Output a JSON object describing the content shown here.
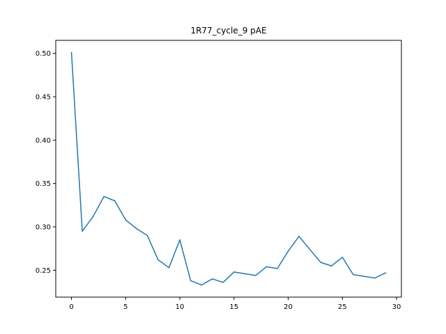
{
  "chart_data": {
    "type": "line",
    "title": "1R77_cycle_9 pAE",
    "xlabel": "",
    "ylabel": "",
    "xlim": [
      -1.45,
      30.45
    ],
    "ylim": [
      0.219,
      0.515
    ],
    "grid": false,
    "x_ticks": [
      0,
      5,
      10,
      15,
      20,
      25,
      30
    ],
    "y_ticks": [
      0.25,
      0.3,
      0.35,
      0.4,
      0.45,
      0.5
    ],
    "x_tick_labels": [
      "0",
      "5",
      "10",
      "15",
      "20",
      "25",
      "30"
    ],
    "y_tick_labels": [
      "0.25",
      "0.30",
      "0.35",
      "0.40",
      "0.45",
      "0.50"
    ],
    "line_color": "#1f77b4",
    "series": [
      {
        "x": [
          0,
          1,
          2,
          3,
          4,
          5,
          6,
          7,
          8,
          9,
          10,
          11,
          12,
          13,
          14,
          15,
          16,
          17,
          18,
          19,
          20,
          21,
          22,
          23,
          24,
          25,
          26,
          27,
          28,
          29
        ],
        "values": [
          0.501,
          0.295,
          0.312,
          0.335,
          0.33,
          0.308,
          0.298,
          0.29,
          0.262,
          0.253,
          0.285,
          0.238,
          0.233,
          0.24,
          0.236,
          0.248,
          0.246,
          0.244,
          0.254,
          0.252,
          0.272,
          0.289,
          0.274,
          0.259,
          0.255,
          0.265,
          0.245,
          0.243,
          0.241,
          0.247
        ]
      }
    ]
  }
}
